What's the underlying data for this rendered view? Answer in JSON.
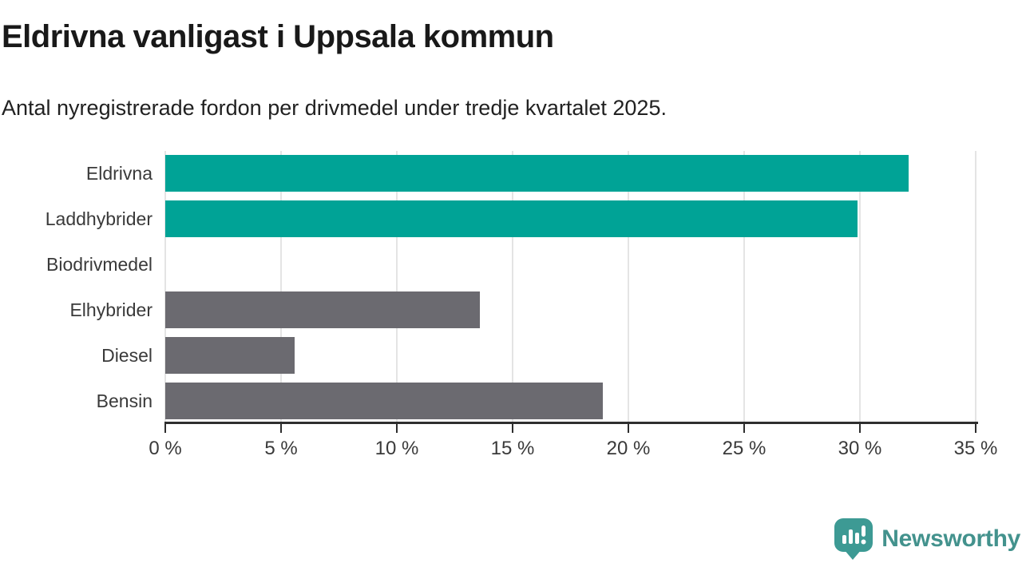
{
  "header": {
    "title": "Eldrivna vanligast i Uppsala kommun",
    "subtitle": "Antal nyregistrerade fordon per drivmedel under tredje kvartalet 2025."
  },
  "chart_data": {
    "type": "bar",
    "orientation": "horizontal",
    "title": "Eldrivna vanligast i Uppsala kommun",
    "subtitle": "Antal nyregistrerade fordon per drivmedel under tredje kvartalet 2025.",
    "categories": [
      "Eldrivna",
      "Laddhybrider",
      "Biodrivmedel",
      "Elhybrider",
      "Diesel",
      "Bensin"
    ],
    "values": [
      32.1,
      29.9,
      0,
      13.6,
      5.6,
      18.9
    ],
    "unit": "%",
    "xlim": [
      0,
      35
    ],
    "xticks": [
      0,
      5,
      10,
      15,
      20,
      25,
      30,
      35
    ],
    "xtick_labels": [
      "0 %",
      "5 %",
      "10 %",
      "15 %",
      "20 %",
      "25 %",
      "30 %",
      "35 %"
    ],
    "grid": "vertical-only",
    "legend": "none",
    "bar_colors": [
      "#00A396",
      "#00A396",
      "#6B6A70",
      "#6B6A70",
      "#6B6A70",
      "#6B6A70"
    ],
    "highlight_color": "#00A396",
    "default_color": "#6B6A70"
  },
  "footer": {
    "brand": "Newsworthy",
    "brand_color": "#43928D",
    "icon_color": "#3D9A94"
  }
}
